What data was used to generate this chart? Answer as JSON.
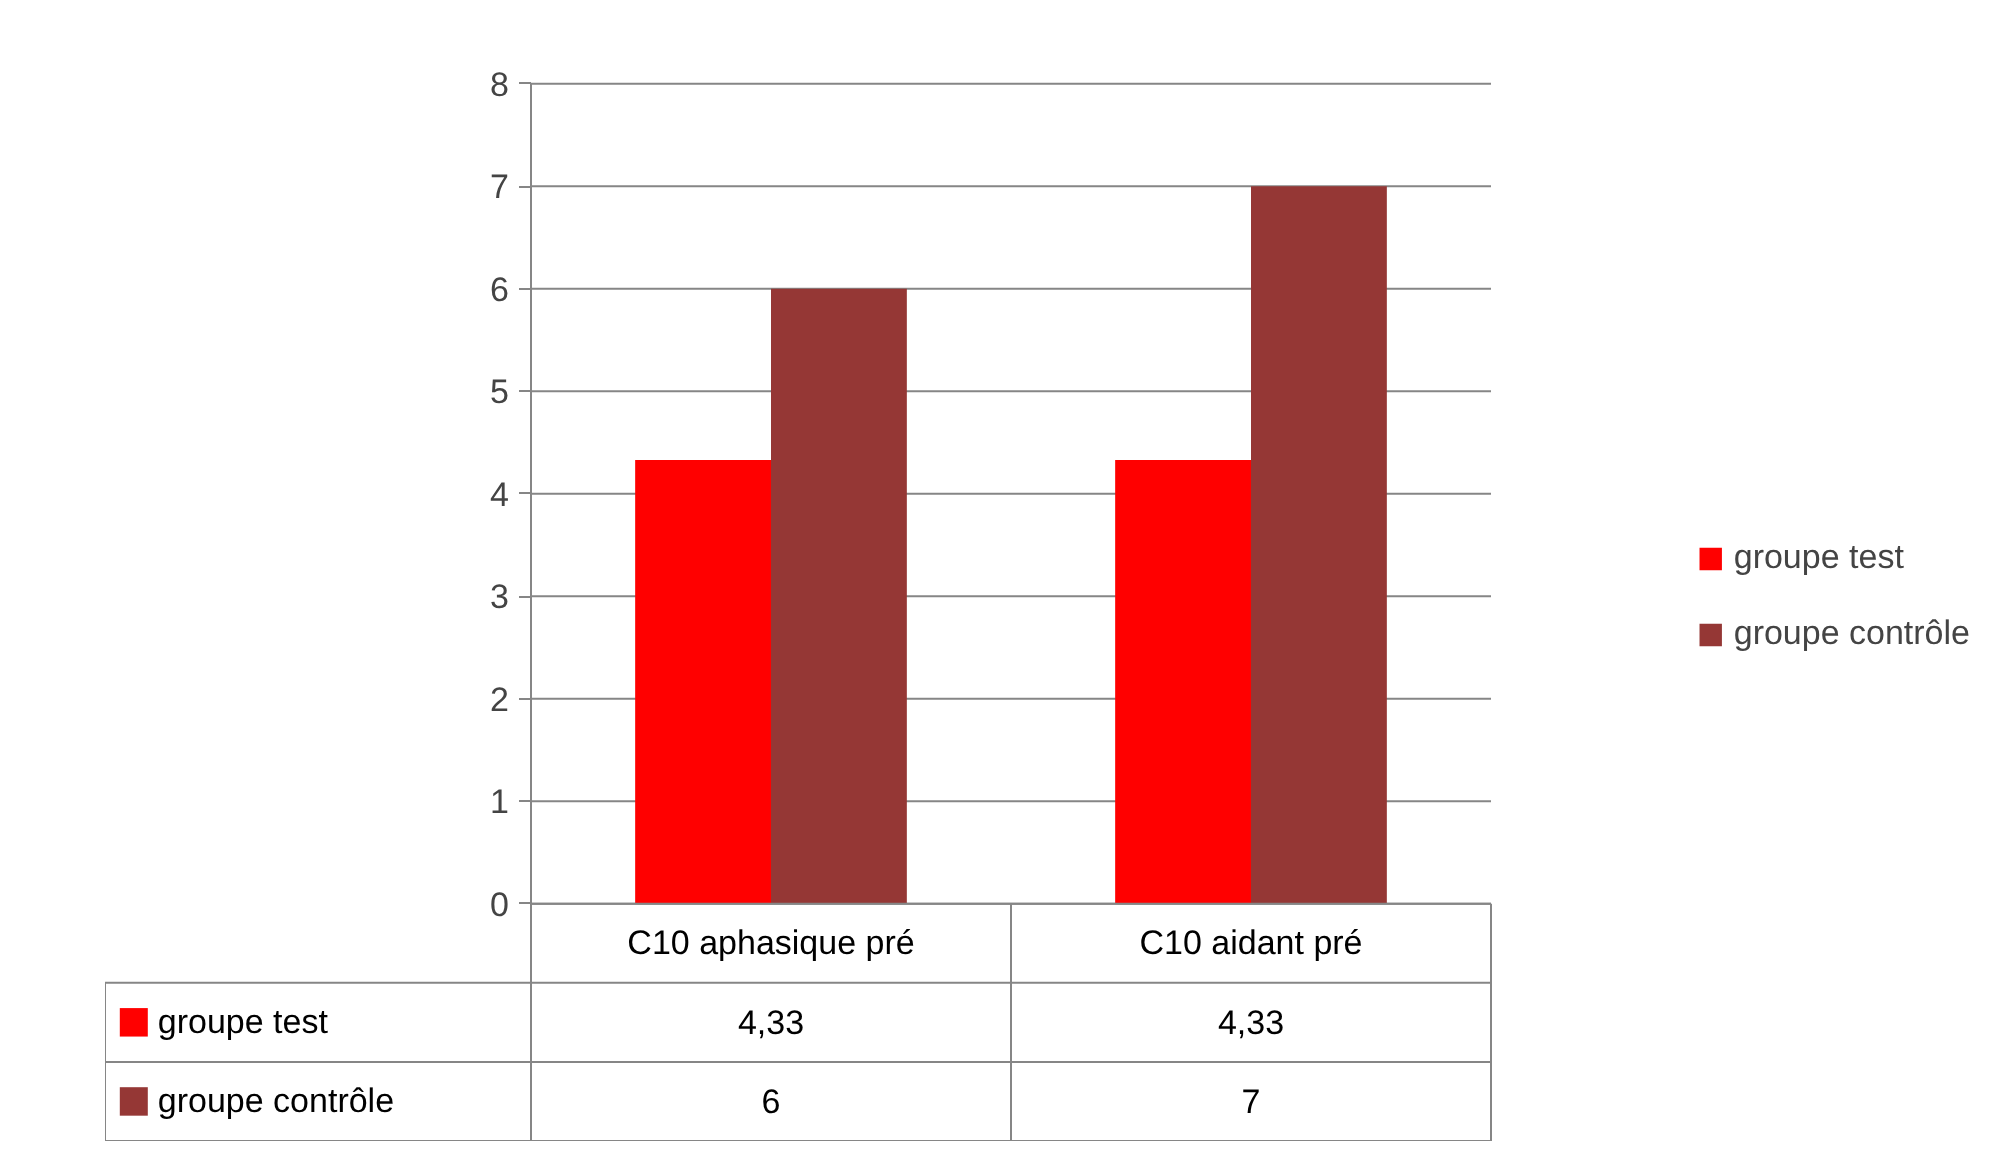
{
  "chart_data": {
    "type": "bar",
    "categories": [
      "C10 aphasique pré",
      "C10 aidant pré"
    ],
    "series": [
      {
        "name": "groupe test",
        "color": "#ff0000",
        "values": [
          4.33,
          4.33
        ],
        "value_labels": [
          "4,33",
          "4,33"
        ]
      },
      {
        "name": "groupe contrôle",
        "color": "#953735",
        "values": [
          6,
          7
        ],
        "value_labels": [
          "6",
          "7"
        ]
      }
    ],
    "ylim": [
      0,
      8
    ],
    "yticks": [
      0,
      1,
      2,
      3,
      4,
      5,
      6,
      7,
      8
    ],
    "grid": "y",
    "legend": "right"
  }
}
